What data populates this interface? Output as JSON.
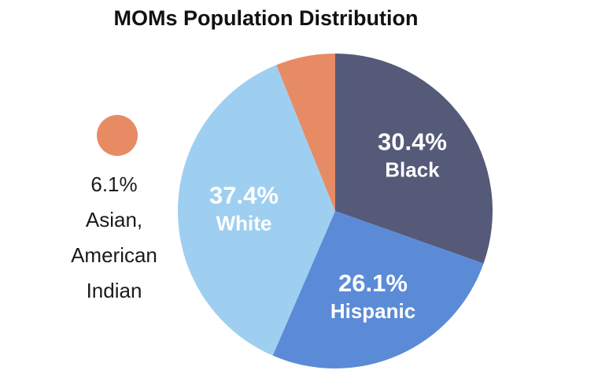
{
  "chart_data": {
    "type": "pie",
    "title": "MOMs Population Distribution",
    "slices": [
      {
        "label": "Black",
        "value": 30.4,
        "value_label": "30.4%",
        "color": "#545a78"
      },
      {
        "label": "Hispanic",
        "value": 26.1,
        "value_label": "26.1%",
        "color": "#5b8bd6"
      },
      {
        "label": "White",
        "value": 37.4,
        "value_label": "37.4%",
        "color": "#9fcff0"
      },
      {
        "label": "Asian, American Indian",
        "value": 6.1,
        "value_label": "6.1%",
        "color": "#e78b65"
      }
    ],
    "start_angle_deg": 0,
    "direction": "clockwise",
    "external_legend": {
      "value_label": "6.1%",
      "lines": [
        "Asian,",
        "American",
        "Indian"
      ],
      "color": "#e78b65"
    }
  }
}
